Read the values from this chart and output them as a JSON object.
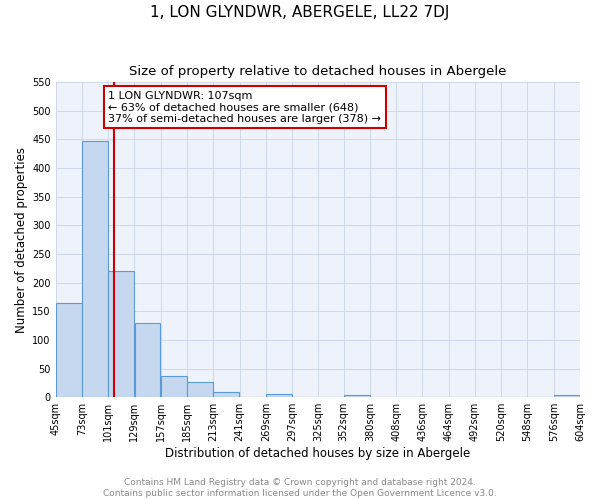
{
  "title": "1, LON GLYNDWR, ABERGELE, LL22 7DJ",
  "subtitle": "Size of property relative to detached houses in Abergele",
  "xlabel": "Distribution of detached houses by size in Abergele",
  "ylabel": "Number of detached properties",
  "bar_edges": [
    45,
    73,
    101,
    129,
    157,
    185,
    213,
    241,
    269,
    297,
    325,
    352,
    380,
    408,
    436,
    464,
    492,
    520,
    548,
    576,
    604
  ],
  "bar_heights": [
    165,
    447,
    220,
    130,
    37,
    26,
    9,
    0,
    6,
    0,
    0,
    4,
    0,
    0,
    0,
    0,
    0,
    0,
    0,
    4
  ],
  "bar_color": "#c5d8f0",
  "bar_edge_color": "#5b9bd5",
  "vline_x": 107,
  "vline_color": "#cc0000",
  "ylim": [
    0,
    550
  ],
  "annotation_box_text": "1 LON GLYNDWR: 107sqm\n← 63% of detached houses are smaller (648)\n37% of semi-detached houses are larger (378) →",
  "tick_labels": [
    "45sqm",
    "73sqm",
    "101sqm",
    "129sqm",
    "157sqm",
    "185sqm",
    "213sqm",
    "241sqm",
    "269sqm",
    "297sqm",
    "325sqm",
    "352sqm",
    "380sqm",
    "408sqm",
    "436sqm",
    "464sqm",
    "492sqm",
    "520sqm",
    "548sqm",
    "576sqm",
    "604sqm"
  ],
  "footer_line1": "Contains HM Land Registry data © Crown copyright and database right 2024.",
  "footer_line2": "Contains public sector information licensed under the Open Government Licence v3.0.",
  "background_color": "#eef2fa",
  "grid_color": "#c8d4e8",
  "title_fontsize": 11,
  "subtitle_fontsize": 9.5,
  "axis_label_fontsize": 8.5,
  "tick_fontsize": 7,
  "footer_fontsize": 6.5,
  "annotation_fontsize": 8
}
